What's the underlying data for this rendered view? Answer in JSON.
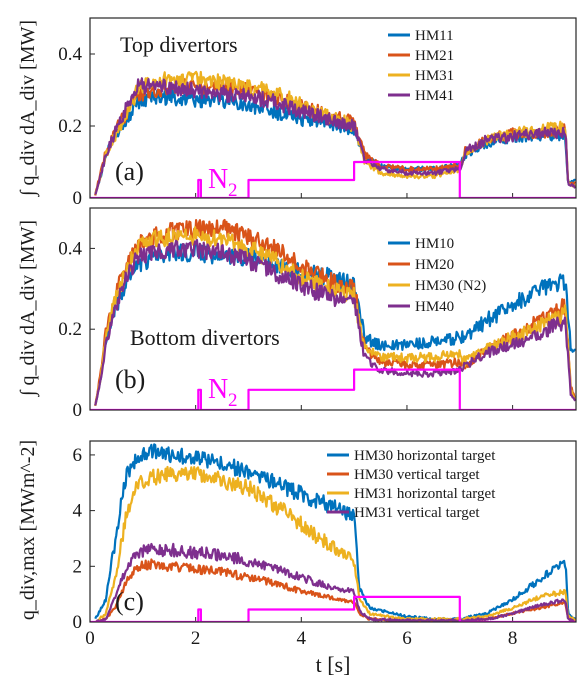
{
  "chart_data": [
    {
      "type": "line",
      "panel_tag": "(a)",
      "title": "Top divertors",
      "ylabel": "∫ q_div dA_div [MW]",
      "ylim": [
        0,
        0.5
      ],
      "yticks": [
        0,
        0.2,
        0.4
      ],
      "ytick_labels": [
        "0",
        "0.2",
        "0.4"
      ],
      "xlim": [
        0,
        9.2
      ],
      "legend_position": "top-right",
      "series": [
        {
          "name": "HM11",
          "color": "#0072BD",
          "x": [
            0.1,
            0.2,
            0.3,
            0.5,
            0.7,
            0.9,
            1.2,
            1.5,
            2.0,
            2.5,
            3.0,
            3.5,
            4.0,
            4.5,
            5.0,
            5.2,
            5.5,
            6.0,
            6.5,
            7.0,
            7.1,
            7.5,
            8.0,
            8.5,
            9.0,
            9.05,
            9.2
          ],
          "y": [
            0.01,
            0.06,
            0.12,
            0.18,
            0.22,
            0.27,
            0.28,
            0.28,
            0.27,
            0.27,
            0.26,
            0.24,
            0.22,
            0.21,
            0.19,
            0.11,
            0.09,
            0.08,
            0.08,
            0.09,
            0.12,
            0.15,
            0.17,
            0.17,
            0.17,
            0.04,
            0.05
          ]
        },
        {
          "name": "HM21",
          "color": "#D95319",
          "x": [
            0.1,
            0.2,
            0.3,
            0.5,
            0.7,
            0.9,
            1.2,
            1.5,
            2.0,
            2.5,
            3.0,
            3.5,
            4.0,
            4.5,
            5.0,
            5.2,
            5.5,
            6.0,
            6.5,
            7.0,
            7.1,
            7.5,
            8.0,
            8.5,
            9.0,
            9.05,
            9.2
          ],
          "y": [
            0.01,
            0.07,
            0.13,
            0.19,
            0.24,
            0.29,
            0.3,
            0.31,
            0.31,
            0.31,
            0.3,
            0.28,
            0.25,
            0.23,
            0.21,
            0.12,
            0.09,
            0.08,
            0.08,
            0.09,
            0.13,
            0.16,
            0.18,
            0.18,
            0.19,
            0.04,
            0.04
          ]
        },
        {
          "name": "HM31",
          "color": "#EDB120",
          "x": [
            0.1,
            0.2,
            0.3,
            0.5,
            0.7,
            0.9,
            1.2,
            1.5,
            2.0,
            2.5,
            3.0,
            3.5,
            4.0,
            4.5,
            5.0,
            5.2,
            5.5,
            6.0,
            6.5,
            7.0,
            7.1,
            7.5,
            8.0,
            8.5,
            9.0,
            9.05,
            9.2
          ],
          "y": [
            0.01,
            0.06,
            0.12,
            0.18,
            0.24,
            0.3,
            0.32,
            0.33,
            0.33,
            0.32,
            0.31,
            0.29,
            0.26,
            0.23,
            0.2,
            0.1,
            0.07,
            0.06,
            0.06,
            0.08,
            0.12,
            0.16,
            0.18,
            0.19,
            0.2,
            0.04,
            0.03
          ]
        },
        {
          "name": "HM41",
          "color": "#7E2F8E",
          "x": [
            0.1,
            0.2,
            0.3,
            0.5,
            0.7,
            0.9,
            1.2,
            1.5,
            2.0,
            2.5,
            3.0,
            3.5,
            4.0,
            4.5,
            5.0,
            5.2,
            5.5,
            6.0,
            6.5,
            7.0,
            7.1,
            7.5,
            8.0,
            8.5,
            9.0,
            9.05,
            9.2
          ],
          "y": [
            0.01,
            0.06,
            0.12,
            0.19,
            0.25,
            0.31,
            0.31,
            0.31,
            0.3,
            0.29,
            0.28,
            0.27,
            0.24,
            0.22,
            0.2,
            0.11,
            0.08,
            0.07,
            0.07,
            0.08,
            0.13,
            0.16,
            0.17,
            0.18,
            0.18,
            0.04,
            0.03
          ]
        },
        {
          "name": "",
          "role": "N2 puff",
          "color": "#FF00FF",
          "x": [
            0,
            2.05,
            2.05,
            2.1,
            2.1,
            3.0,
            3.0,
            5.0,
            5.0,
            7.0,
            7.0,
            9.2
          ],
          "y": [
            0,
            0,
            0.05,
            0.05,
            0,
            0,
            0.05,
            0.05,
            0.1,
            0.1,
            0,
            0
          ]
        }
      ],
      "annotation": {
        "text": "N",
        "subscript": "2"
      }
    },
    {
      "type": "line",
      "panel_tag": "(b)",
      "title": "Bottom divertors",
      "ylabel": "∫ q_div dA_div [MW]",
      "ylim": [
        0,
        0.5
      ],
      "yticks": [
        0,
        0.2,
        0.4
      ],
      "ytick_labels": [
        "0",
        "0.2",
        "0.4"
      ],
      "xlim": [
        0,
        9.2
      ],
      "legend_position": "top-right",
      "series": [
        {
          "name": "HM10",
          "color": "#0072BD",
          "x": [
            0.1,
            0.2,
            0.3,
            0.5,
            0.7,
            0.9,
            1.2,
            1.5,
            2.0,
            2.5,
            3.0,
            3.5,
            4.0,
            4.5,
            5.0,
            5.2,
            5.5,
            6.0,
            6.5,
            7.0,
            7.1,
            7.5,
            8.0,
            8.5,
            9.0,
            9.1,
            9.2
          ],
          "y": [
            0.01,
            0.08,
            0.17,
            0.26,
            0.32,
            0.36,
            0.38,
            0.39,
            0.39,
            0.38,
            0.38,
            0.36,
            0.34,
            0.33,
            0.31,
            0.18,
            0.16,
            0.16,
            0.17,
            0.18,
            0.18,
            0.22,
            0.26,
            0.3,
            0.32,
            0.15,
            0.14
          ]
        },
        {
          "name": "HM20",
          "color": "#D95319",
          "x": [
            0.1,
            0.2,
            0.3,
            0.5,
            0.7,
            0.9,
            1.2,
            1.5,
            2.0,
            2.5,
            3.0,
            3.5,
            4.0,
            4.5,
            5.0,
            5.2,
            5.5,
            6.0,
            6.5,
            7.0,
            7.1,
            7.5,
            8.0,
            8.5,
            9.0,
            9.1,
            9.2
          ],
          "y": [
            0.01,
            0.09,
            0.19,
            0.29,
            0.36,
            0.41,
            0.43,
            0.44,
            0.45,
            0.45,
            0.43,
            0.4,
            0.36,
            0.32,
            0.3,
            0.15,
            0.12,
            0.11,
            0.11,
            0.12,
            0.11,
            0.15,
            0.18,
            0.22,
            0.26,
            0.06,
            0.02
          ]
        },
        {
          "name": "HM30 (N2)",
          "color": "#EDB120",
          "x": [
            0.1,
            0.2,
            0.3,
            0.5,
            0.7,
            0.9,
            1.2,
            1.5,
            2.0,
            2.5,
            3.0,
            3.5,
            4.0,
            4.5,
            5.0,
            5.2,
            5.5,
            6.0,
            6.5,
            7.0,
            7.1,
            7.5,
            8.0,
            8.5,
            9.0,
            9.1,
            9.2
          ],
          "y": [
            0.01,
            0.08,
            0.18,
            0.28,
            0.35,
            0.4,
            0.42,
            0.43,
            0.43,
            0.42,
            0.4,
            0.37,
            0.33,
            0.3,
            0.28,
            0.15,
            0.13,
            0.13,
            0.13,
            0.14,
            0.12,
            0.15,
            0.18,
            0.21,
            0.24,
            0.05,
            0.02
          ]
        },
        {
          "name": "HM40",
          "color": "#7E2F8E",
          "x": [
            0.1,
            0.2,
            0.3,
            0.5,
            0.7,
            0.9,
            1.2,
            1.5,
            2.0,
            2.5,
            3.0,
            3.5,
            4.0,
            4.5,
            5.0,
            5.2,
            5.5,
            6.0,
            6.5,
            7.0,
            7.1,
            7.5,
            8.0,
            8.5,
            9.0,
            9.1,
            9.2
          ],
          "y": [
            0.01,
            0.07,
            0.16,
            0.26,
            0.33,
            0.38,
            0.39,
            0.4,
            0.4,
            0.39,
            0.37,
            0.34,
            0.31,
            0.28,
            0.27,
            0.13,
            0.1,
            0.09,
            0.09,
            0.1,
            0.11,
            0.14,
            0.16,
            0.19,
            0.22,
            0.04,
            0.02
          ]
        },
        {
          "name": "",
          "role": "N2 puff",
          "color": "#FF00FF",
          "x": [
            0,
            2.05,
            2.05,
            2.1,
            2.1,
            3.0,
            3.0,
            5.0,
            5.0,
            7.0,
            7.0,
            9.2
          ],
          "y": [
            0,
            0,
            0.05,
            0.05,
            0,
            0,
            0.05,
            0.05,
            0.1,
            0.1,
            0,
            0
          ]
        }
      ],
      "annotation": {
        "text": "N",
        "subscript": "2"
      }
    },
    {
      "type": "line",
      "panel_tag": "(c)",
      "title": "",
      "ylabel": "q_div,max [MWm^-2]",
      "xlabel": "t [s]",
      "ylim": [
        0,
        6.5
      ],
      "yticks": [
        0,
        2,
        4,
        6
      ],
      "ytick_labels": [
        "0",
        "2",
        "4",
        "6"
      ],
      "xlim": [
        0,
        9.2
      ],
      "xticks": [
        0,
        2,
        4,
        6,
        8
      ],
      "xtick_labels": [
        "0",
        "2",
        "4",
        "6",
        "8"
      ],
      "legend_position": "top-right",
      "series": [
        {
          "name": "HM30 horizontal target",
          "color": "#0072BD",
          "x": [
            0.1,
            0.3,
            0.5,
            0.7,
            0.9,
            1.2,
            1.5,
            2.0,
            2.5,
            3.0,
            3.5,
            4.0,
            4.5,
            5.0,
            5.1,
            5.3,
            6.0,
            6.5,
            7.0,
            7.5,
            8.0,
            8.5,
            9.0,
            9.05,
            9.2
          ],
          "y": [
            0.1,
            0.8,
            3.2,
            5.4,
            5.9,
            6.1,
            6.0,
            5.9,
            5.7,
            5.4,
            5.0,
            4.6,
            4.2,
            3.8,
            1.2,
            0.5,
            0.2,
            0.1,
            0.1,
            0.3,
            0.8,
            1.5,
            2.2,
            0.3,
            0.1
          ]
        },
        {
          "name": "HM30 vertical target",
          "color": "#D95319",
          "x": [
            0.1,
            0.3,
            0.5,
            0.7,
            0.9,
            1.2,
            1.5,
            2.0,
            2.5,
            3.0,
            3.5,
            4.0,
            4.5,
            5.0,
            5.1,
            5.3,
            6.0,
            6.5,
            7.0,
            7.5,
            8.0,
            8.5,
            9.0,
            9.05,
            9.2
          ],
          "y": [
            0.0,
            0.1,
            0.6,
            1.5,
            2.0,
            2.1,
            2.0,
            1.9,
            1.8,
            1.6,
            1.4,
            1.1,
            0.9,
            0.7,
            0.3,
            0.1,
            0.05,
            0.05,
            0.05,
            0.1,
            0.3,
            0.5,
            0.7,
            0.1,
            0.0
          ]
        },
        {
          "name": "HM31 horizontal target",
          "color": "#EDB120",
          "x": [
            0.1,
            0.3,
            0.5,
            0.7,
            0.9,
            1.2,
            1.5,
            2.0,
            2.5,
            3.0,
            3.5,
            4.0,
            4.5,
            5.0,
            5.1,
            5.3,
            6.0,
            6.5,
            7.0,
            7.5,
            8.0,
            8.5,
            9.0,
            9.05,
            9.2
          ],
          "y": [
            0.0,
            0.3,
            1.8,
            4.0,
            4.9,
            5.2,
            5.3,
            5.3,
            5.1,
            4.8,
            4.2,
            3.5,
            2.8,
            2.2,
            0.8,
            0.3,
            0.1,
            0.1,
            0.1,
            0.2,
            0.5,
            0.9,
            1.1,
            0.2,
            0.1
          ]
        },
        {
          "name": "HM31 vertical target",
          "color": "#7E2F8E",
          "x": [
            0.1,
            0.3,
            0.5,
            0.7,
            0.9,
            1.2,
            1.5,
            2.0,
            2.5,
            3.0,
            3.5,
            4.0,
            4.5,
            5.0,
            5.1,
            5.3,
            6.0,
            6.5,
            7.0,
            7.5,
            8.0,
            8.5,
            9.0,
            9.05,
            9.2
          ],
          "y": [
            0.0,
            0.1,
            1.0,
            2.0,
            2.5,
            2.6,
            2.6,
            2.5,
            2.4,
            2.2,
            1.9,
            1.6,
            1.3,
            1.1,
            0.4,
            0.1,
            0.05,
            0.05,
            0.05,
            0.1,
            0.3,
            0.6,
            0.8,
            0.1,
            0.0
          ]
        },
        {
          "name": "",
          "role": "N2 puff",
          "color": "#FF00FF",
          "x": [
            0,
            2.05,
            2.05,
            2.1,
            2.1,
            3.0,
            3.0,
            5.0,
            5.0,
            7.0,
            7.0,
            9.2
          ],
          "y": [
            0,
            0,
            0.45,
            0.45,
            0,
            0,
            0.45,
            0.45,
            0.9,
            0.9,
            0,
            0
          ]
        }
      ]
    }
  ]
}
